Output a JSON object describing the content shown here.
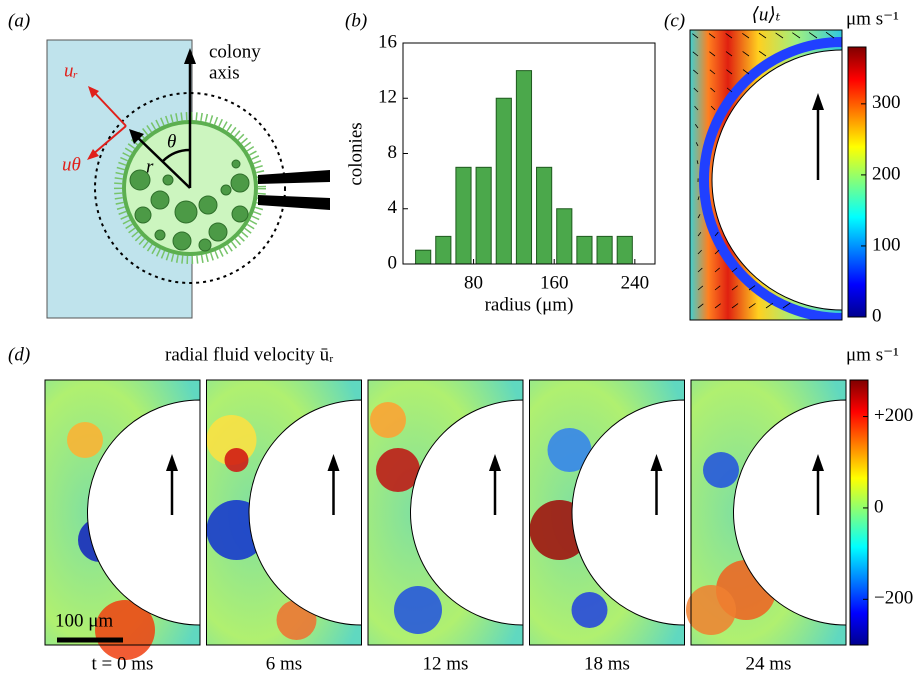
{
  "chart_data": {
    "type": "histogram",
    "panel_label": "(b)",
    "ylabel": "colonies",
    "xlabel": "radius (μm)",
    "bins": [
      20,
      40,
      60,
      80,
      100,
      120,
      140,
      160,
      180,
      200,
      220,
      240
    ],
    "counts": [
      1,
      2,
      7,
      7,
      12,
      14,
      7,
      4,
      2,
      2,
      2
    ],
    "color": "#4ba84b",
    "xlim": [
      10,
      260
    ],
    "xticks": [
      80,
      160,
      240
    ],
    "ylim": [
      0,
      16
    ],
    "yticks": [
      0,
      4,
      8,
      12,
      16
    ]
  },
  "panel_a": {
    "label": "(a)",
    "axis_label_1": "colony",
    "axis_label_2": "axis",
    "ur": "uᵣ",
    "utheta": "uθ",
    "r": "r",
    "theta": "θ"
  },
  "panel_c": {
    "label": "(c)",
    "title": "⟨u⟩ₜ",
    "unit": "μm s⁻¹",
    "clim": [
      0,
      380
    ],
    "ticks": [
      0,
      100,
      200,
      300
    ]
  },
  "panel_d": {
    "label": "(d)",
    "title": "radial fluid velocity ūᵣ",
    "unit": "μm s⁻¹",
    "scale_bar": "100 μm",
    "clim": [
      -300,
      280
    ],
    "ticks": [
      {
        "value": 200,
        "label": "+200"
      },
      0,
      {
        "value": -200,
        "label": "−200"
      }
    ],
    "times": [
      "t = 0 ms",
      "6 ms",
      "12 ms",
      "18 ms",
      "24 ms"
    ]
  }
}
